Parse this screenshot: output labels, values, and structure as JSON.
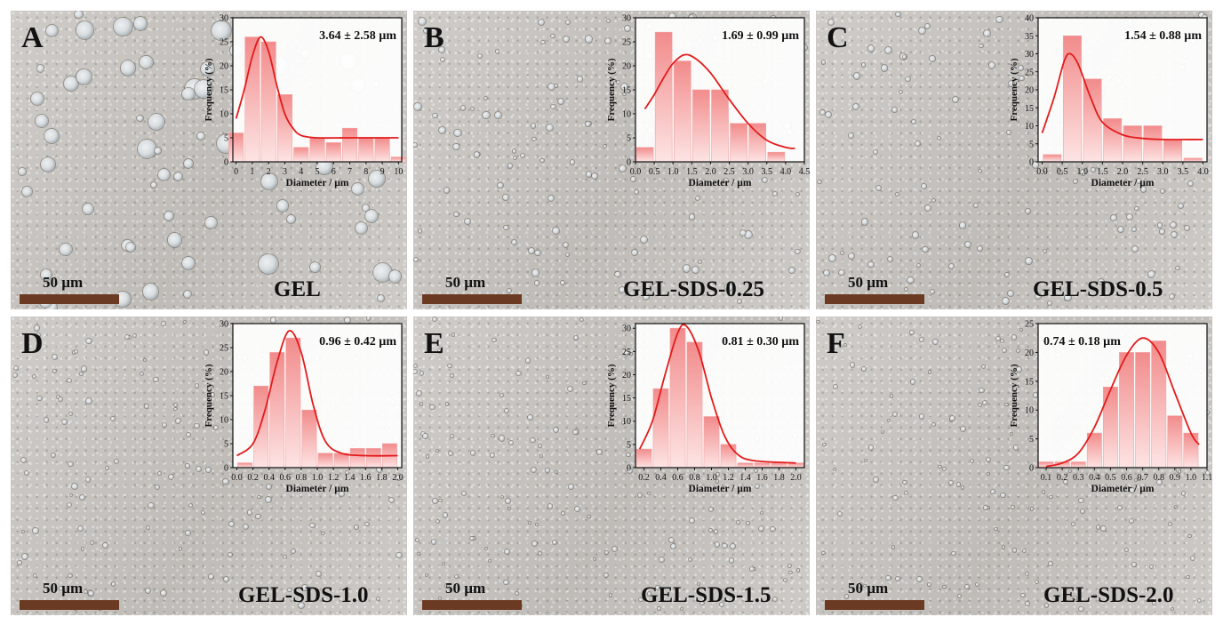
{
  "figure": {
    "scale_bar_label": "50 µm",
    "panels": [
      {
        "letter": "A",
        "sample": "GEL"
      },
      {
        "letter": "B",
        "sample": "GEL-SDS-0.25"
      },
      {
        "letter": "C",
        "sample": "GEL-SDS-0.5"
      },
      {
        "letter": "D",
        "sample": "GEL-SDS-1.0"
      },
      {
        "letter": "E",
        "sample": "GEL-SDS-1.5"
      },
      {
        "letter": "F",
        "sample": "GEL-SDS-2.0"
      }
    ]
  },
  "chart_data": [
    {
      "type": "bar",
      "panel": "A",
      "annotation": "3.64 ± 2.58 µm",
      "xlabel": "Diameter / µm",
      "ylabel": "Frequency (%)",
      "xlim": [
        -0.2,
        10.2
      ],
      "ylim": [
        0,
        30
      ],
      "xticks": [
        0,
        1,
        2,
        3,
        4,
        5,
        6,
        7,
        8,
        9,
        10
      ],
      "xtick_labels": [
        "0",
        "1",
        "2",
        "3",
        "4",
        "5",
        "6",
        "7",
        "8",
        "9",
        "10"
      ],
      "yticks": [
        0,
        5,
        10,
        15,
        20,
        25,
        30
      ],
      "bin_width": 0.9,
      "x": [
        0,
        1,
        2,
        3,
        4,
        5,
        6,
        7,
        8,
        9,
        10
      ],
      "values": [
        6,
        26,
        25,
        14,
        3,
        5,
        4,
        7,
        5,
        5,
        1
      ],
      "fit": [
        [
          0,
          9
        ],
        [
          0.5,
          15
        ],
        [
          1,
          22
        ],
        [
          1.5,
          26
        ],
        [
          2,
          23
        ],
        [
          2.5,
          16
        ],
        [
          3,
          10
        ],
        [
          3.5,
          7
        ],
        [
          4,
          5.5
        ],
        [
          5,
          5
        ],
        [
          7,
          5
        ],
        [
          10,
          5
        ]
      ]
    },
    {
      "type": "bar",
      "panel": "B",
      "annotation": "1.69 ± 0.99 µm",
      "xlabel": "Diameter / µm",
      "ylabel": "Frequency (%)",
      "xlim": [
        0,
        4.5
      ],
      "ylim": [
        0,
        30
      ],
      "xticks": [
        0,
        0.5,
        1,
        1.5,
        2,
        2.5,
        3,
        3.5,
        4,
        4.5
      ],
      "xtick_labels": [
        "0.0",
        "0.5",
        "1.0",
        "1.5",
        "2.0",
        "2.5",
        "3.0",
        "3.5",
        "4.0",
        "4.5"
      ],
      "yticks": [
        0,
        5,
        10,
        15,
        20,
        25,
        30
      ],
      "bin_width": 0.45,
      "x": [
        0.25,
        0.75,
        1.25,
        1.75,
        2.25,
        2.75,
        3.25,
        3.75,
        4.25
      ],
      "values": [
        3,
        27,
        21,
        15,
        15,
        8,
        8,
        2,
        0
      ],
      "fit": [
        [
          0.25,
          11
        ],
        [
          0.5,
          14
        ],
        [
          0.75,
          17.5
        ],
        [
          1,
          20.5
        ],
        [
          1.3,
          22.3
        ],
        [
          1.6,
          21.5
        ],
        [
          2,
          18.5
        ],
        [
          2.5,
          13
        ],
        [
          3,
          8
        ],
        [
          3.5,
          4.5
        ],
        [
          4,
          3
        ],
        [
          4.25,
          2.8
        ]
      ]
    },
    {
      "type": "bar",
      "panel": "C",
      "annotation": "1.54 ± 0.88 µm",
      "xlabel": "Diameter / µm",
      "ylabel": "Frequency (%)",
      "xlim": [
        -0.1,
        4.1
      ],
      "ylim": [
        0,
        40
      ],
      "xticks": [
        0,
        0.5,
        1,
        1.5,
        2,
        2.5,
        3,
        3.5,
        4
      ],
      "xtick_labels": [
        "0.0",
        "0.5",
        "1.0",
        "1.5",
        "2.0",
        "2.5",
        "3.0",
        "3.5",
        "4.0"
      ],
      "yticks": [
        0,
        5,
        10,
        15,
        20,
        25,
        30,
        35,
        40
      ],
      "bin_width": 0.45,
      "x": [
        0.25,
        0.75,
        1.25,
        1.75,
        2.25,
        2.75,
        3.25,
        3.75
      ],
      "values": [
        2,
        35,
        23,
        12,
        10,
        10,
        6,
        1
      ],
      "fit": [
        [
          0,
          8
        ],
        [
          0.3,
          18
        ],
        [
          0.55,
          28
        ],
        [
          0.7,
          30
        ],
        [
          0.9,
          27
        ],
        [
          1.2,
          18
        ],
        [
          1.5,
          11
        ],
        [
          2,
          7.5
        ],
        [
          2.5,
          6.5
        ],
        [
          3,
          6.2
        ],
        [
          4,
          6.2
        ]
      ]
    },
    {
      "type": "bar",
      "panel": "D",
      "annotation": "0.96 ± 0.42 µm",
      "xlabel": "Diameter / µm",
      "ylabel": "Frequency (%)",
      "xlim": [
        -0.05,
        2.05
      ],
      "ylim": [
        0,
        30
      ],
      "xticks": [
        0,
        0.2,
        0.4,
        0.6,
        0.8,
        1.0,
        1.2,
        1.4,
        1.6,
        1.8,
        2.0
      ],
      "xtick_labels": [
        "0.0",
        "0.2",
        "0.4",
        "0.6",
        "0.8",
        "1.0",
        "1.2",
        "1.4",
        "1.6",
        "1.8",
        "2.0"
      ],
      "yticks": [
        0,
        5,
        10,
        15,
        20,
        25,
        30
      ],
      "bin_width": 0.18,
      "x": [
        0.1,
        0.3,
        0.5,
        0.7,
        0.9,
        1.1,
        1.3,
        1.5,
        1.7,
        1.9
      ],
      "values": [
        1,
        17,
        24,
        27,
        12,
        3,
        3,
        4,
        4,
        5
      ],
      "fit": [
        [
          0,
          2.5
        ],
        [
          0.2,
          5
        ],
        [
          0.35,
          12
        ],
        [
          0.5,
          22
        ],
        [
          0.65,
          28.5
        ],
        [
          0.8,
          24
        ],
        [
          0.95,
          13
        ],
        [
          1.1,
          5.5
        ],
        [
          1.3,
          3
        ],
        [
          1.6,
          2.5
        ],
        [
          2,
          2.5
        ]
      ]
    },
    {
      "type": "bar",
      "panel": "E",
      "annotation": "0.81 ± 0.30 µm",
      "xlabel": "Diameter / µm",
      "ylabel": "Frequency (%)",
      "xlim": [
        0.1,
        2.1
      ],
      "ylim": [
        0,
        31
      ],
      "xticks": [
        0.2,
        0.4,
        0.6,
        0.8,
        1.0,
        1.2,
        1.4,
        1.6,
        1.8,
        2.0
      ],
      "xtick_labels": [
        "0.2",
        "0.4",
        "0.6",
        "0.8",
        "1.0",
        "1.2",
        "1.4",
        "1.6",
        "1.8",
        "2.0"
      ],
      "yticks": [
        0,
        5,
        10,
        15,
        20,
        25,
        30
      ],
      "bin_width": 0.18,
      "x": [
        0.2,
        0.4,
        0.6,
        0.8,
        1.0,
        1.2,
        1.4,
        1.6,
        1.8,
        2.0
      ],
      "values": [
        4,
        17,
        30,
        27,
        11,
        5,
        1,
        1,
        1,
        1
      ],
      "fit": [
        [
          0.15,
          4
        ],
        [
          0.3,
          10
        ],
        [
          0.45,
          20
        ],
        [
          0.6,
          29
        ],
        [
          0.7,
          30.5
        ],
        [
          0.85,
          25
        ],
        [
          1,
          15
        ],
        [
          1.15,
          7
        ],
        [
          1.3,
          3
        ],
        [
          1.5,
          1.5
        ],
        [
          2,
          1
        ]
      ]
    },
    {
      "type": "bar",
      "panel": "F",
      "annotation": "0.74 ± 0.18 µm",
      "xlabel": "Diameter / µm",
      "ylabel": "Frequency (%)",
      "xlim": [
        0.05,
        1.1
      ],
      "ylim": [
        0,
        25
      ],
      "xticks": [
        0.1,
        0.2,
        0.3,
        0.4,
        0.5,
        0.6,
        0.7,
        0.8,
        0.9,
        1.0,
        1.1
      ],
      "xtick_labels": [
        "0.1",
        "0.2",
        "0.3",
        "0.4",
        "0.5",
        "0.6",
        "0.7",
        "0.8",
        "0.9",
        "1.0",
        "1.1"
      ],
      "yticks": [
        0,
        5,
        10,
        15,
        20,
        25
      ],
      "bin_width": 0.09,
      "x": [
        0.1,
        0.2,
        0.3,
        0.4,
        0.5,
        0.6,
        0.7,
        0.8,
        0.9,
        1.0
      ],
      "values": [
        1,
        1,
        1,
        6,
        14,
        20,
        20,
        22,
        9,
        6
      ],
      "fit": [
        [
          0.1,
          0.2
        ],
        [
          0.2,
          0.8
        ],
        [
          0.3,
          2.5
        ],
        [
          0.4,
          7
        ],
        [
          0.5,
          13.5
        ],
        [
          0.6,
          19.5
        ],
        [
          0.7,
          22.5
        ],
        [
          0.8,
          20
        ],
        [
          0.9,
          13
        ],
        [
          1,
          6
        ],
        [
          1.05,
          4
        ]
      ]
    }
  ]
}
